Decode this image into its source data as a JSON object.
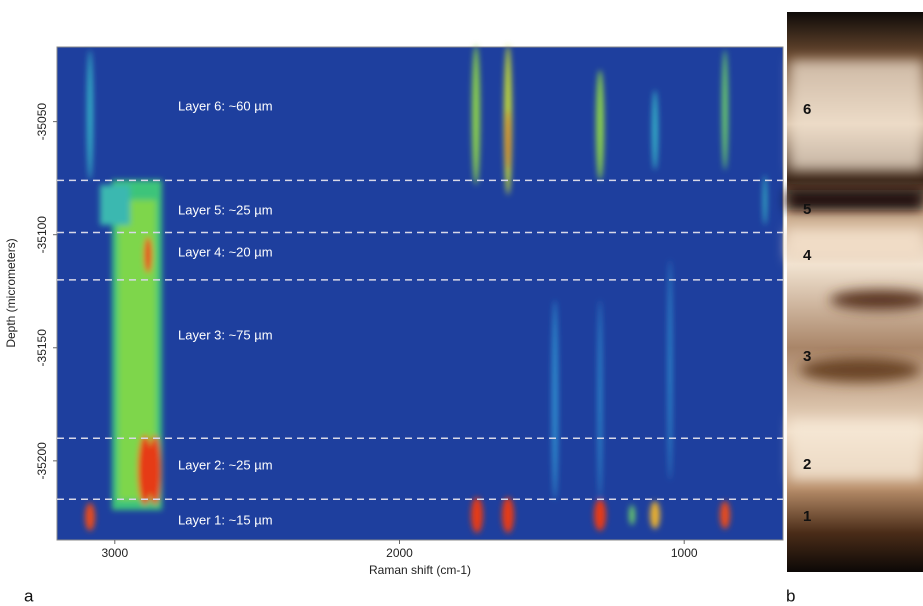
{
  "chart_data": {
    "type": "heatmap",
    "x_label": "Raman shift (cm-1)",
    "y_label": "Depth (micrometers)",
    "xlim": [
      3203,
      653
    ],
    "xticks": [
      3000,
      2000,
      1000
    ],
    "ylim": [
      -35235,
      -35017
    ],
    "yticks": [
      -35050,
      -35100,
      -35150,
      -35200
    ],
    "layer_boundaries": [
      -35076,
      -35099,
      -35120,
      -35190,
      -35217
    ],
    "annotations": [
      "Layer 6: ~60 µm",
      "Layer 5: ~25 µm",
      "Layer 4: ~20 µm",
      "Layer 3: ~75 µm",
      "Layer 2: ~25 µm",
      "Layer 1: ~15 µm"
    ]
  },
  "panel_labels": [
    "a",
    "b"
  ],
  "image": {
    "layer_numbers": [
      "6",
      "5",
      "4",
      "3",
      "2",
      "1"
    ]
  }
}
